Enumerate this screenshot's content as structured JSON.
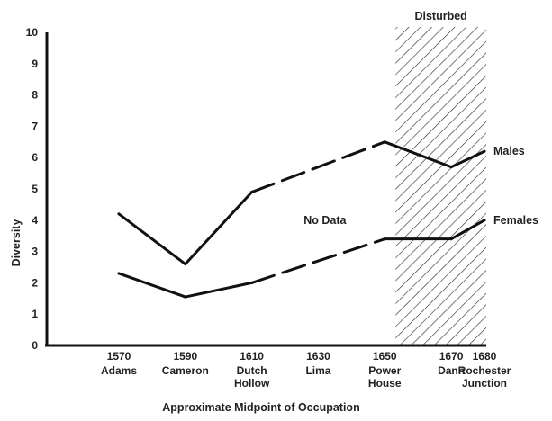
{
  "chart_data": {
    "type": "line",
    "xlabel": "Approximate Midpoint of Occupation",
    "ylabel": "Diversity",
    "ylim": [
      0,
      10
    ],
    "yticks": [
      0,
      1,
      2,
      3,
      4,
      5,
      6,
      7,
      8,
      9,
      10
    ],
    "x": [
      1570,
      1590,
      1610,
      1630,
      1650,
      1670,
      1680
    ],
    "xtick_labels": [
      "1570",
      "1590",
      "1610",
      "1630",
      "1650",
      "1670",
      "1680"
    ],
    "site_names": [
      [
        "Adams"
      ],
      [
        "Cameron"
      ],
      [
        "Dutch",
        "Hollow"
      ],
      [
        "Lima"
      ],
      [
        "Power",
        "House"
      ],
      [
        "Dann"
      ],
      [
        "Rochester",
        "Junction"
      ]
    ],
    "series": [
      {
        "name": "Males",
        "points": [
          [
            1570,
            4.2
          ],
          [
            1590,
            2.6
          ],
          [
            1610,
            4.9
          ],
          [
            1650,
            6.5
          ],
          [
            1670,
            5.7
          ],
          [
            1680,
            6.2
          ]
        ],
        "dashed_segment": [
          1610,
          1650
        ]
      },
      {
        "name": "Females",
        "points": [
          [
            1570,
            2.3
          ],
          [
            1590,
            1.55
          ],
          [
            1610,
            2.0
          ],
          [
            1650,
            3.4
          ],
          [
            1670,
            3.4
          ],
          [
            1680,
            4.0
          ]
        ],
        "dashed_segment": [
          1610,
          1650
        ]
      }
    ],
    "annotations": {
      "no_data": "No Data",
      "disturbed": "Disturbed",
      "disturbed_range": [
        1650,
        1680
      ]
    },
    "grid": false,
    "legend": "series labels at right end of lines"
  }
}
